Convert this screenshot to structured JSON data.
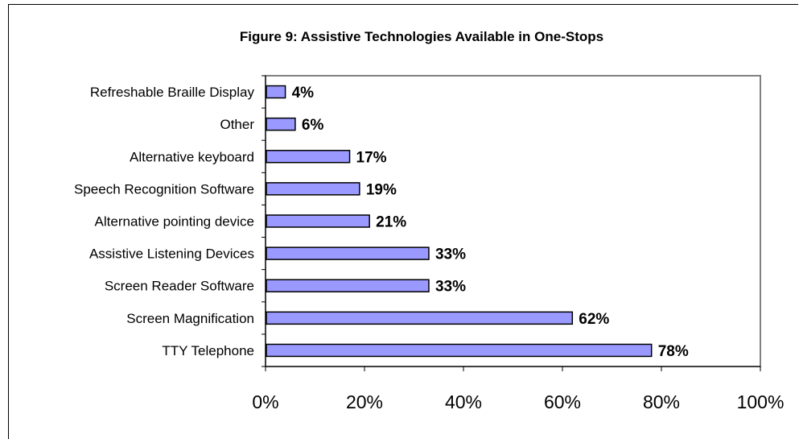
{
  "chart_data": {
    "type": "bar",
    "orientation": "horizontal",
    "title": "Figure 9: Assistive Technologies Available in One-Stops",
    "categories": [
      "Refreshable Braille Display",
      "Other",
      "Alternative keyboard",
      "Speech Recognition Software",
      "Alternative pointing device",
      "Assistive Listening Devices",
      "Screen Reader Software",
      "Screen Magnification",
      "TTY Telephone"
    ],
    "values": [
      4,
      6,
      17,
      19,
      21,
      33,
      33,
      62,
      78
    ],
    "value_labels": [
      "4%",
      "6%",
      "17%",
      "19%",
      "21%",
      "33%",
      "33%",
      "62%",
      "78%"
    ],
    "xlim": [
      0,
      100
    ],
    "xticks": [
      "0%",
      "20%",
      "40%",
      "60%",
      "80%",
      "100%"
    ],
    "xlabel": "",
    "ylabel": "",
    "grid": false,
    "legend": "none",
    "colors": {
      "bar_fill": "#9999ff",
      "bar_stroke": "#000000",
      "plot_border": "#808080"
    }
  }
}
